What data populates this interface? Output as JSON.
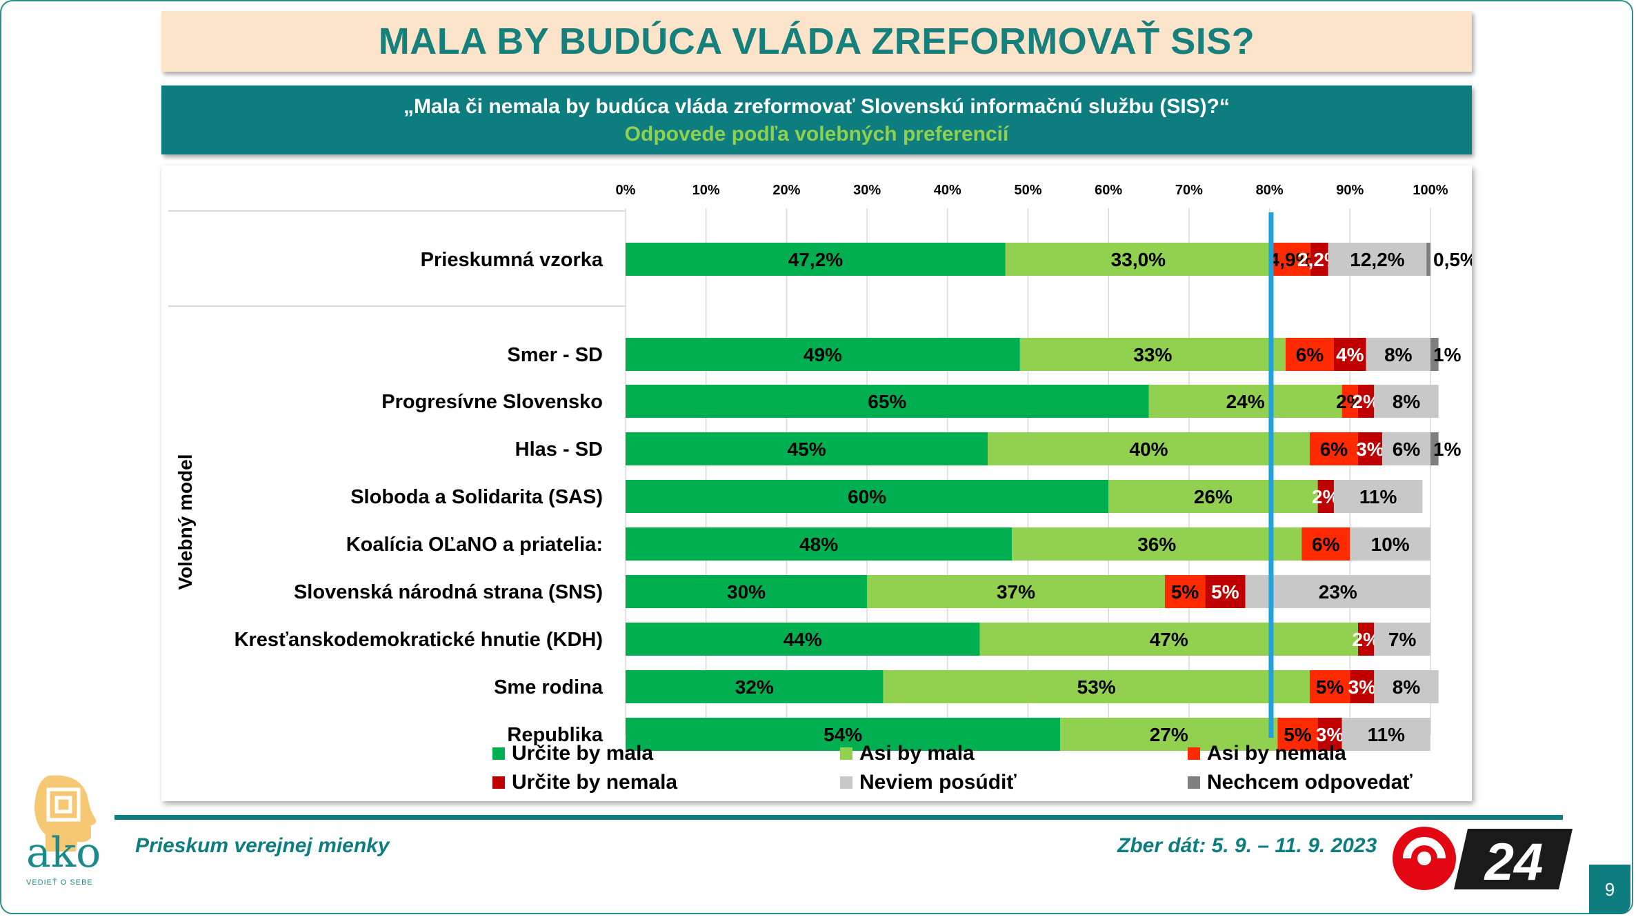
{
  "title": "MALA BY BUDÚCA VLÁDA ZREFORMOVAŤ SIS?",
  "question": "„Mala či nemala by budúca vláda zreformovať Slovenskú informačnú službu (SIS)?“",
  "subtitle": "Odpovede podľa volebných preferencií",
  "footer": {
    "survey": "Prieskum verejnej mienky",
    "dates": "Zber dát: 5. 9. – 11. 9. 2023",
    "page": "9"
  },
  "logo": {
    "brand": "ako",
    "tagline": "VEDIEŤ O SEBE",
    "tv": "24"
  },
  "colors": {
    "title": "#15807c",
    "panel": "#0e7d80",
    "subtitle_accent": "#8fd14f",
    "reference_line": "#1fa3df"
  },
  "chart_data": {
    "type": "bar",
    "orientation": "horizontal-stacked-100",
    "x_ticks": [
      "0%",
      "10%",
      "20%",
      "30%",
      "40%",
      "50%",
      "60%",
      "70%",
      "80%",
      "90%",
      "100%"
    ],
    "xlim": [
      0,
      100
    ],
    "ylabel": "Volebný model",
    "reference_line_x": 80.2,
    "grid": true,
    "legend_position": "bottom",
    "series": [
      {
        "name": "Určite by mala",
        "color": "#00b050"
      },
      {
        "name": "Asi by mala",
        "color": "#92d050"
      },
      {
        "name": "Asi by nemala",
        "color": "#ff2a00"
      },
      {
        "name": "Určite by nemala",
        "color": "#c00000"
      },
      {
        "name": "Neviem posúdiť",
        "color": "#c8c8c8"
      },
      {
        "name": "Nechcem odpovedať",
        "color": "#7f7f7f"
      }
    ],
    "rows": [
      {
        "category": "Prieskumná vzorka",
        "group": "total",
        "values": [
          47.2,
          33.0,
          4.9,
          2.2,
          12.2,
          0.5
        ],
        "labels": [
          "47,2%",
          "33,0%",
          "4,9%",
          "2,2%",
          "12,2%",
          "0,5%"
        ]
      },
      {
        "category": "Smer - SD",
        "group": "model",
        "values": [
          49,
          33,
          6,
          4,
          8,
          1
        ],
        "labels": [
          "49%",
          "33%",
          "6%",
          "4%",
          "8%",
          "1%"
        ]
      },
      {
        "category": "Progresívne Slovensko",
        "group": "model",
        "values": [
          65,
          24,
          2,
          2,
          8,
          0
        ],
        "labels": [
          "65%",
          "24%",
          "2%",
          "2%",
          "8%",
          ""
        ]
      },
      {
        "category": "Hlas - SD",
        "group": "model",
        "values": [
          45,
          40,
          6,
          3,
          6,
          1
        ],
        "labels": [
          "45%",
          "40%",
          "6%",
          "3%",
          "6%",
          "1%"
        ]
      },
      {
        "category": "Sloboda a Solidarita (SAS)",
        "group": "model",
        "values": [
          60,
          26,
          0,
          2,
          11,
          0
        ],
        "labels": [
          "60%",
          "26%",
          "",
          "2%",
          "11%",
          ""
        ]
      },
      {
        "category": "Koalícia OĽaNO a priatelia:",
        "group": "model",
        "values": [
          48,
          36,
          6,
          0,
          10,
          0
        ],
        "labels": [
          "48%",
          "36%",
          "6%",
          "",
          "10%",
          ""
        ]
      },
      {
        "category": "Slovenská národná strana (SNS)",
        "group": "model",
        "values": [
          30,
          37,
          5,
          5,
          23,
          0
        ],
        "labels": [
          "30%",
          "37%",
          "5%",
          "5%",
          "23%",
          ""
        ]
      },
      {
        "category": "Kresťanskodemokratické hnutie (KDH)",
        "group": "model",
        "values": [
          44,
          47,
          0,
          2,
          7,
          0
        ],
        "labels": [
          "44%",
          "47%",
          "",
          "2%",
          "7%",
          ""
        ]
      },
      {
        "category": "Sme rodina",
        "group": "model",
        "values": [
          32,
          53,
          5,
          3,
          8,
          0
        ],
        "labels": [
          "32%",
          "53%",
          "5%",
          "3%",
          "8%",
          ""
        ]
      },
      {
        "category": "Republika",
        "group": "model",
        "values": [
          54,
          27,
          5,
          3,
          11,
          0
        ],
        "labels": [
          "54%",
          "27%",
          "5%",
          "3%",
          "11%",
          ""
        ]
      }
    ]
  }
}
